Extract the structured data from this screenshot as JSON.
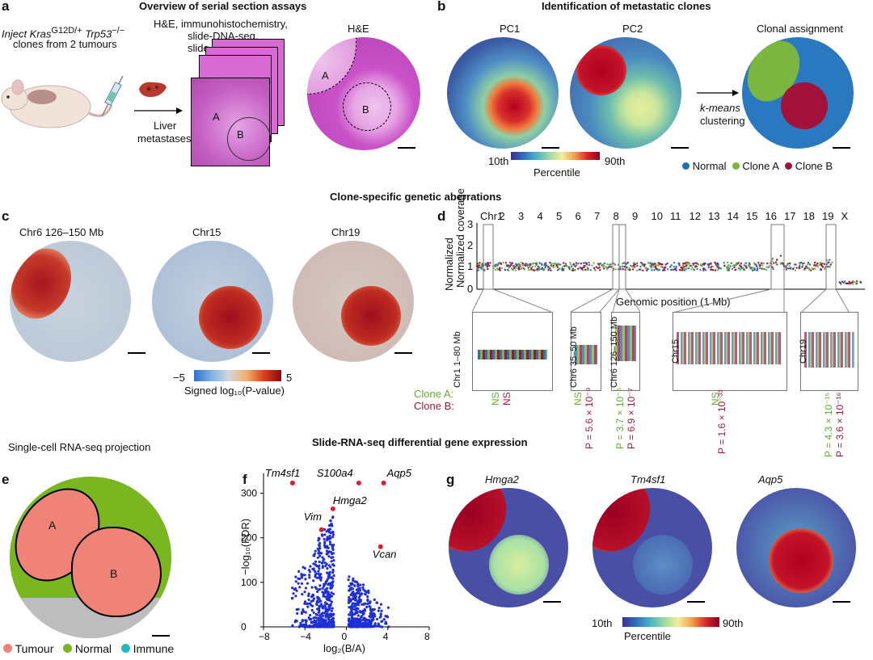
{
  "panels": {
    "a": "a",
    "b": "b",
    "c": "c",
    "d": "d",
    "e": "e",
    "f": "f",
    "g": "g"
  },
  "a": {
    "title": "Overview of serial section assays",
    "inject_line1": "Inject Kras",
    "inject_sup1": "G12D/+",
    "inject_gene2": " Trp53",
    "inject_sup2": "−/−",
    "inject_line2": "clones from 2 tumours",
    "assays": [
      "H&E, immunohistochemistry,",
      "slide-DNA-seq,",
      "slide-RNA-seq"
    ],
    "liver": [
      "Liver",
      "metastases"
    ],
    "he_title": "H&E",
    "region_a": "A",
    "region_b": "B"
  },
  "b": {
    "title": "Identification of metastatic clones",
    "pc1": "PC1",
    "pc2": "PC2",
    "clonal": "Clonal assignment",
    "kmeans": [
      "k-means",
      "clustering"
    ],
    "cbar_low": "10th",
    "cbar_high": "90th",
    "cbar_label": "Percentile",
    "legend": [
      {
        "label": "Normal",
        "color": "#1f6fb5"
      },
      {
        "label": "Clone A",
        "color": "#7ab640"
      },
      {
        "label": "Clone B",
        "color": "#a3123a"
      }
    ]
  },
  "section_title": "Clone-specific genetic aberrations",
  "c": {
    "discs": [
      "Chr6 126–150 Mb",
      "Chr15",
      "Chr19"
    ],
    "cbar_low": "−5",
    "cbar_high": "5",
    "cbar_label": "Signed log₁₀(P-value)"
  },
  "d": {
    "chromosomes": [
      "Chr1",
      "2",
      "3",
      "4",
      "5",
      "6",
      "7",
      "8",
      "9",
      "10",
      "11",
      "12",
      "13",
      "14",
      "15",
      "16",
      "17",
      "18",
      "19",
      "X"
    ],
    "ylabel": "Normalized coverage",
    "yticks": [
      "3",
      "2",
      "1",
      "0"
    ],
    "xlabel": "Genomic position (1 Mb)",
    "insets": [
      "Chr1 1–80 Mb",
      "Chr6 35–50 Mb",
      "Chr6 126–150 Mb",
      "Chr15",
      "Chr19"
    ],
    "clone_a_label": "Clone A:",
    "clone_b_label": "Clone B:",
    "stats": {
      "chr1": {
        "a": "NS",
        "b": "NS"
      },
      "chr6a": {
        "a": "NS",
        "b": "P = 5.6 × 10⁻⁹"
      },
      "chr6b": {
        "a": "P = 3.7 × 10⁻⁵",
        "b": "P = 6.9 × 10⁻⁷"
      },
      "chr15": {
        "a": "NS",
        "b": "P = 1.6 × 10⁻³³"
      },
      "chr19": {
        "a": "P = 4.3 × 10⁻¹⁵",
        "b": "P = 3.6 × 10⁻¹⁶"
      }
    }
  },
  "e": {
    "title": "Single-cell RNA-seq projection",
    "region_a": "A",
    "region_b": "B",
    "legend": [
      {
        "label": "Tumour",
        "color": "#f08378"
      },
      {
        "label": "Normal",
        "color": "#7ab620"
      },
      {
        "label": "Immune",
        "color": "#27b7c0"
      }
    ]
  },
  "f": {
    "title": "Slide-RNA-seq differential gene expression",
    "ylabel": "−log₁₀(FDR)",
    "xlabel": "log₂(B/A)",
    "xticks": [
      "−8",
      "−4",
      "0",
      "4",
      "8"
    ],
    "yticks": [
      "0",
      "100",
      "200",
      "300"
    ],
    "genes": [
      "Tm4sf1",
      "S100a4",
      "Aqp5",
      "Hmga2",
      "Vim",
      "Vcan"
    ]
  },
  "g": {
    "genes": [
      "Hmga2",
      "Tm4sf1",
      "Aqp5"
    ],
    "cbar_low": "10th",
    "cbar_high": "90th",
    "cbar_label": "Percentile"
  },
  "chart_data": {
    "type": "scatter",
    "title": "Slide-RNA-seq differential gene expression",
    "xlabel": "log2(B/A)",
    "ylabel": "-log10(FDR)",
    "xlim": [
      -8,
      8
    ],
    "ylim": [
      0,
      330
    ],
    "highlighted": [
      {
        "gene": "Tm4sf1",
        "x": -5.2,
        "y": 323
      },
      {
        "gene": "S100a4",
        "x": 1.2,
        "y": 323
      },
      {
        "gene": "Aqp5",
        "x": 3.6,
        "y": 323
      },
      {
        "gene": "Hmga2",
        "x": -1.3,
        "y": 265
      },
      {
        "gene": "Vim",
        "x": -2.4,
        "y": 218
      },
      {
        "gene": "Vcan",
        "x": 3.3,
        "y": 180
      }
    ]
  }
}
